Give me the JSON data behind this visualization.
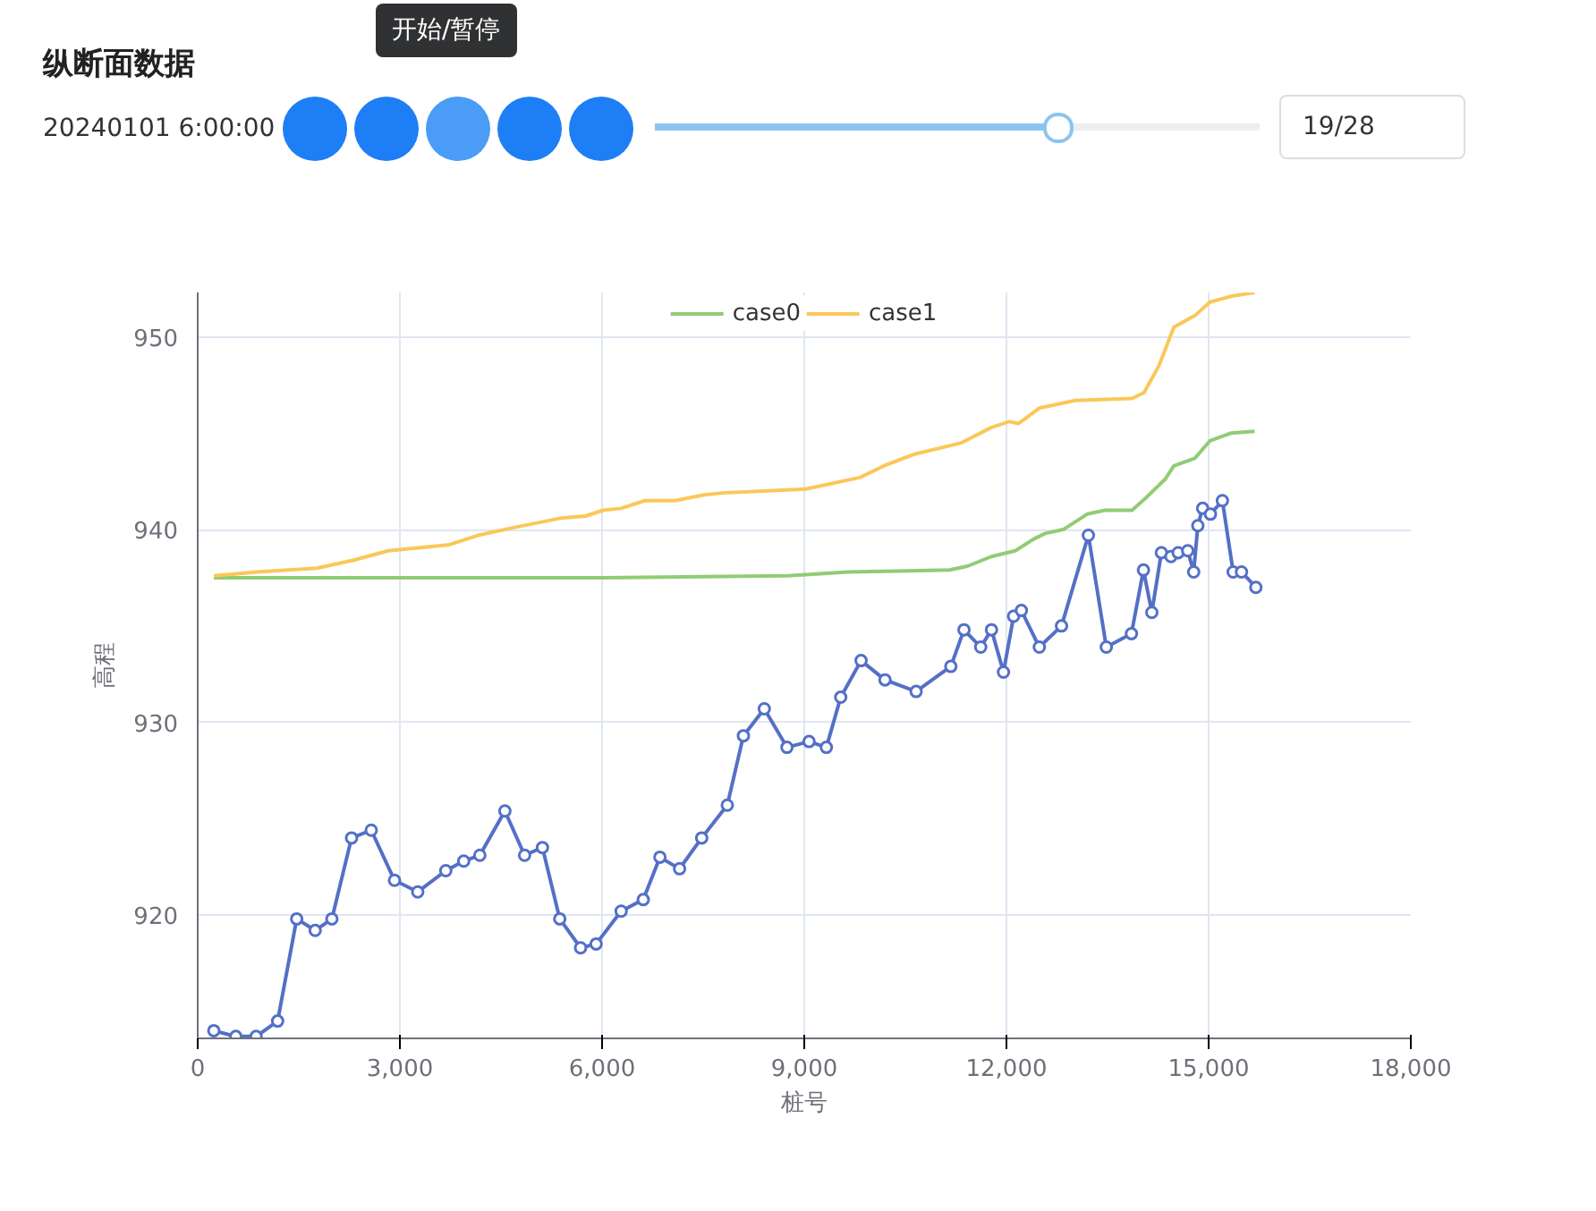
{
  "chart_data": {
    "type": "line",
    "title": "纵断面数据",
    "xlabel": "桩号",
    "ylabel": "高程",
    "annotations": [
      "20240101 6:00:00",
      "19/28",
      "开始/暂停"
    ],
    "xlim": [
      0,
      18000
    ],
    "xticks": [
      {
        "value": 0,
        "label": "0"
      },
      {
        "value": 3000,
        "label": "3,000"
      },
      {
        "value": 6000,
        "label": "6,000"
      },
      {
        "value": 9000,
        "label": "9,000"
      },
      {
        "value": 12000,
        "label": "12,000"
      },
      {
        "value": 15000,
        "label": "15,000"
      },
      {
        "value": 18000,
        "label": "18,000"
      }
    ],
    "ylim": [
      913.6,
      952.3
    ],
    "yticks": [
      920,
      930,
      940,
      950
    ],
    "grid": true,
    "legend": "top",
    "series": [
      {
        "color": "#5470c6",
        "marker": "circle",
        "x": [
          239,
          566,
          867,
          1186,
          1469,
          1743,
          1991,
          2283,
          2575,
          2920,
          3265,
          3681,
          3947,
          4186,
          4558,
          4850,
          5115,
          5372,
          5681,
          5912,
          6283,
          6611,
          6858,
          7150,
          7478,
          7858,
          8097,
          8407,
          8743,
          9071,
          9328,
          9541,
          9843,
          10198,
          10660,
          11175,
          11370,
          11618,
          11778,
          11956,
          12106,
          12222,
          12488,
          12817,
          13216,
          13482,
          13855,
          14033,
          14157,
          14299,
          14441,
          14548,
          14690,
          14778,
          14840,
          14911,
          15027,
          15204,
          15364,
          15488,
          15701
        ],
        "values": [
          914.0,
          913.7,
          913.7,
          914.5,
          919.8,
          919.2,
          919.8,
          924.0,
          924.4,
          921.8,
          921.2,
          922.3,
          922.8,
          923.1,
          925.4,
          923.1,
          923.5,
          919.8,
          918.3,
          918.5,
          920.2,
          920.8,
          923.0,
          922.4,
          924.0,
          925.7,
          929.3,
          930.7,
          928.7,
          929.0,
          928.7,
          931.3,
          933.2,
          932.2,
          931.6,
          932.9,
          934.8,
          933.9,
          934.8,
          932.6,
          935.5,
          935.8,
          933.9,
          935.0,
          939.7,
          933.9,
          934.6,
          937.9,
          935.7,
          938.8,
          938.6,
          938.8,
          938.9,
          937.8,
          940.2,
          941.1,
          940.8,
          941.5,
          937.8,
          937.8,
          937.0
        ]
      },
      {
        "name": "case0",
        "color": "#91cc75",
        "marker": "none",
        "x": [
          239,
          6000,
          8760,
          9648,
          11157,
          11423,
          11778,
          12133,
          12400,
          12577,
          12843,
          13198,
          13464,
          13864,
          14086,
          14352,
          14485,
          14796,
          15018,
          15328,
          15683
        ],
        "values": [
          937.5,
          937.5,
          937.6,
          937.8,
          937.9,
          938.1,
          938.6,
          938.9,
          939.5,
          939.8,
          940.0,
          940.8,
          941.0,
          941.0,
          941.7,
          942.6,
          943.3,
          943.7,
          944.6,
          945.0,
          945.1
        ]
      },
      {
        "name": "case1",
        "color": "#fac858",
        "marker": "none",
        "x": [
          239,
          885,
          1770,
          2301,
          2832,
          3717,
          4159,
          4690,
          5398,
          5752,
          6018,
          6283,
          6637,
          7080,
          7522,
          7788,
          8407,
          9027,
          9825,
          10180,
          10624,
          11334,
          11778,
          12044,
          12177,
          12488,
          13021,
          13864,
          14041,
          14263,
          14485,
          14796,
          15018,
          15328,
          15683
        ],
        "values": [
          937.6,
          937.8,
          938.0,
          938.4,
          938.9,
          939.2,
          939.7,
          940.1,
          940.6,
          940.7,
          941.0,
          941.1,
          941.5,
          941.5,
          941.8,
          941.9,
          942.0,
          942.1,
          942.7,
          943.3,
          943.9,
          944.5,
          945.3,
          945.6,
          945.5,
          946.3,
          946.7,
          946.8,
          947.1,
          948.5,
          950.5,
          951.1,
          951.8,
          952.1,
          952.3
        ]
      }
    ]
  }
}
